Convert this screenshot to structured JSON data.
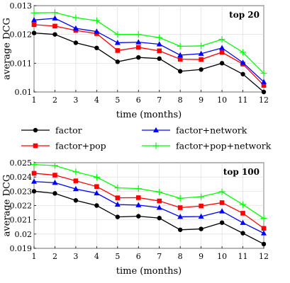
{
  "colors": {
    "factor": "#000000",
    "factor_network": "#0000ff",
    "factor_pop": "#ff0000",
    "factor_pop_network": "#00ff00",
    "grid": "#d9d9d9"
  },
  "legend": {
    "items": [
      {
        "key": "factor",
        "label": "factor",
        "marker": "circle"
      },
      {
        "key": "factor_network",
        "label": "factor+network",
        "marker": "triangle"
      },
      {
        "key": "factor_pop",
        "label": "factor+pop",
        "marker": "square"
      },
      {
        "key": "factor_pop_network",
        "label": "factor+pop+network",
        "marker": "plus"
      }
    ]
  },
  "chart_data": [
    {
      "type": "line",
      "tag": "top 20",
      "xlabel": "time (months)",
      "ylabel": "average DCG",
      "x": [
        1,
        2,
        3,
        4,
        5,
        6,
        7,
        8,
        9,
        10,
        11,
        12
      ],
      "xlim": [
        1,
        12
      ],
      "ylim": [
        0.01,
        0.013
      ],
      "yticks": [
        "0.01",
        "0.011",
        "0.012",
        "0.013"
      ],
      "xticks": [
        "1",
        "2",
        "3",
        "4",
        "5",
        "6",
        "7",
        "8",
        "9",
        "10",
        "11",
        "12"
      ],
      "grid": true,
      "series": [
        {
          "key": "factor",
          "marker": "circle",
          "values": [
            0.01205,
            0.012,
            0.01171,
            0.01153,
            0.01105,
            0.0112,
            0.01116,
            0.01072,
            0.01078,
            0.011,
            0.01062,
            0.01
          ]
        },
        {
          "key": "factor_pop",
          "marker": "square",
          "values": [
            0.01234,
            0.01229,
            0.01214,
            0.01203,
            0.01144,
            0.01155,
            0.01143,
            0.01114,
            0.01113,
            0.01138,
            0.01097,
            0.01023
          ]
        },
        {
          "key": "factor_network",
          "marker": "triangle",
          "values": [
            0.0125,
            0.01256,
            0.01221,
            0.0121,
            0.01171,
            0.01173,
            0.01166,
            0.01128,
            0.01133,
            0.01153,
            0.01102,
            0.01035
          ]
        },
        {
          "key": "factor_pop_network",
          "marker": "plus",
          "values": [
            0.01275,
            0.01276,
            0.01258,
            0.01248,
            0.012,
            0.012,
            0.01189,
            0.01159,
            0.0116,
            0.01183,
            0.01138,
            0.01065
          ]
        }
      ]
    },
    {
      "type": "line",
      "tag": "top 100",
      "xlabel": "time (months)",
      "ylabel": "average DCG",
      "x": [
        1,
        2,
        3,
        4,
        5,
        6,
        7,
        8,
        9,
        10,
        11,
        12
      ],
      "xlim": [
        1,
        12
      ],
      "ylim": [
        0.019,
        0.025
      ],
      "yticks": [
        "0.019",
        "0.02",
        "0.021",
        "0.022",
        "0.023",
        "0.024",
        "0.025"
      ],
      "xticks": [
        "1",
        "2",
        "3",
        "4",
        "5",
        "6",
        "7",
        "8",
        "9",
        "10",
        "11",
        "12"
      ],
      "grid": true,
      "series": [
        {
          "key": "factor",
          "marker": "circle",
          "values": [
            0.023,
            0.02285,
            0.02236,
            0.022,
            0.0212,
            0.02125,
            0.02112,
            0.0203,
            0.02036,
            0.0208,
            0.02006,
            0.0193
          ]
        },
        {
          "key": "factor_network",
          "marker": "triangle",
          "values": [
            0.02368,
            0.0236,
            0.02316,
            0.02286,
            0.02207,
            0.02203,
            0.02185,
            0.02121,
            0.02123,
            0.0216,
            0.02079,
            0.02006
          ]
        },
        {
          "key": "factor_pop",
          "marker": "square",
          "values": [
            0.02426,
            0.02413,
            0.02373,
            0.02333,
            0.02254,
            0.02255,
            0.02232,
            0.02185,
            0.02197,
            0.0222,
            0.02146,
            0.0204
          ]
        },
        {
          "key": "factor_pop_network",
          "marker": "plus",
          "values": [
            0.02487,
            0.0248,
            0.02436,
            0.02399,
            0.02324,
            0.02319,
            0.02294,
            0.02251,
            0.02262,
            0.02296,
            0.02207,
            0.0211
          ]
        }
      ]
    }
  ]
}
